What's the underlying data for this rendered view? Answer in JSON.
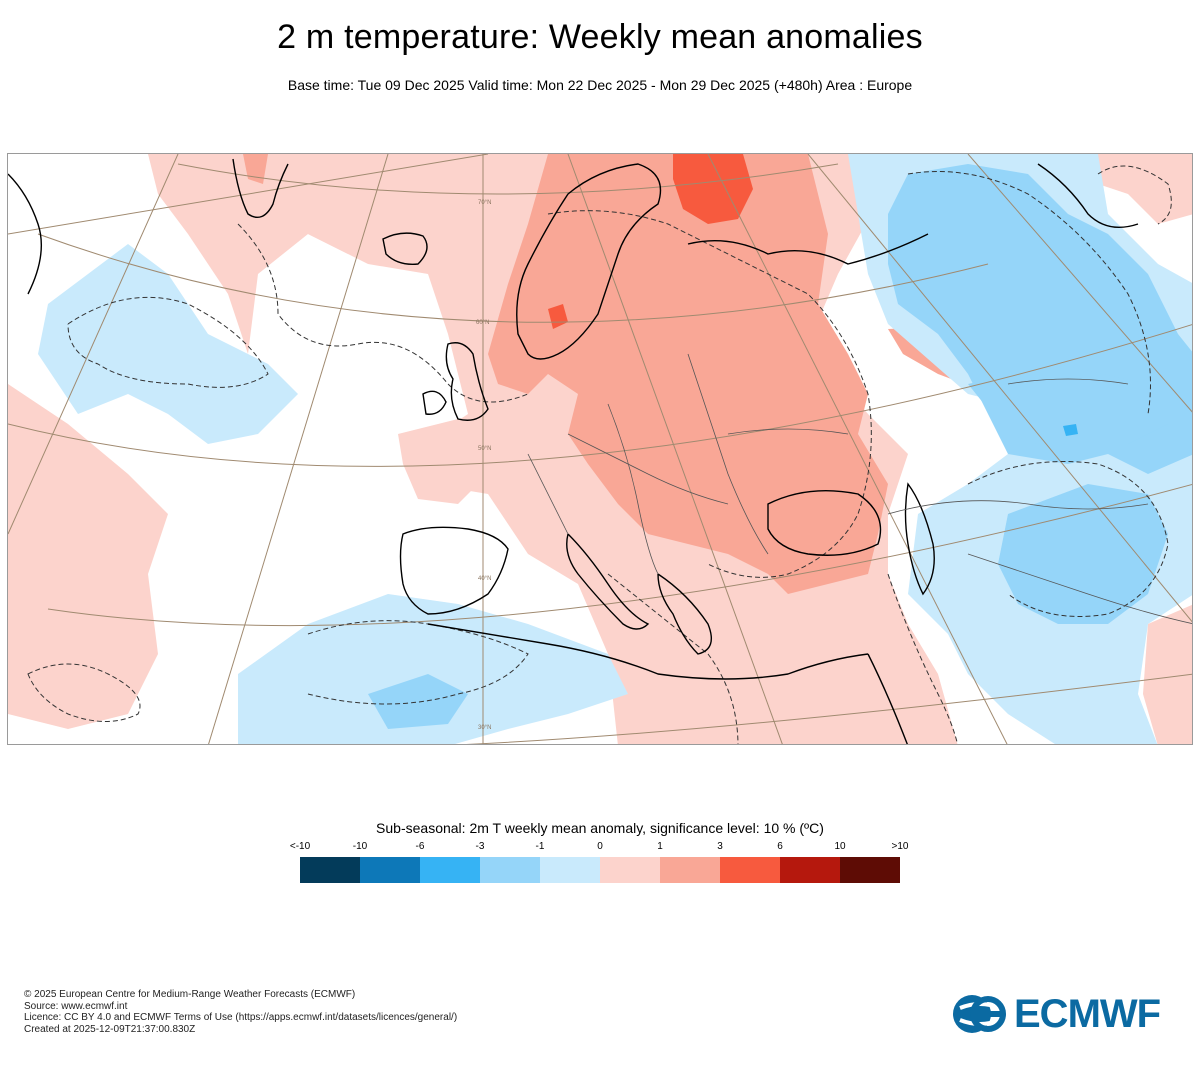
{
  "title": "2 m temperature: Weekly mean anomalies",
  "subtitle": "Base time: Tue 09 Dec 2025 Valid time: Mon 22 Dec 2025 - Mon 29 Dec 2025 (+480h) Area : Europe",
  "map": {
    "latitude_labels": [
      "70°N",
      "60°N",
      "50°N",
      "40°N",
      "30°N"
    ],
    "colors": {
      "ocean_bg": "#ffffff",
      "warm_light": "#fcd3cc",
      "warm_mid": "#f9a796",
      "warm_strong": "#f75a3e",
      "cold_light": "#c9eafc",
      "cold_mid": "#95d5f9",
      "cold_strong": "#36b3f4",
      "graticule": "#a08a70",
      "coast": "#000000"
    }
  },
  "legend": {
    "title": "Sub-seasonal: 2m T weekly mean anomaly, significance level: 10 % (ºC)",
    "labels": [
      "<-10",
      "-10",
      "-6",
      "-3",
      "-1",
      "0",
      "1",
      "3",
      "6",
      "10",
      ">10"
    ],
    "colors": [
      "#033b5a",
      "#0d78b8",
      "#36b3f4",
      "#95d5f9",
      "#c9eafc",
      "#fcd3cc",
      "#f9a796",
      "#f75a3e",
      "#b5180d",
      "#5e0c05"
    ]
  },
  "footer": {
    "line1": "© 2025 European Centre for Medium-Range Weather Forecasts (ECMWF)",
    "line2": "Source: www.ecmwf.int",
    "line3": "Licence: CC BY 4.0 and ECMWF Terms of Use (https://apps.ecmwf.int/datasets/licences/general/)",
    "line4": "Created at 2025-12-09T21:37:00.830Z"
  },
  "logo": {
    "text": "ECMWF",
    "color": "#0b6aa2"
  }
}
